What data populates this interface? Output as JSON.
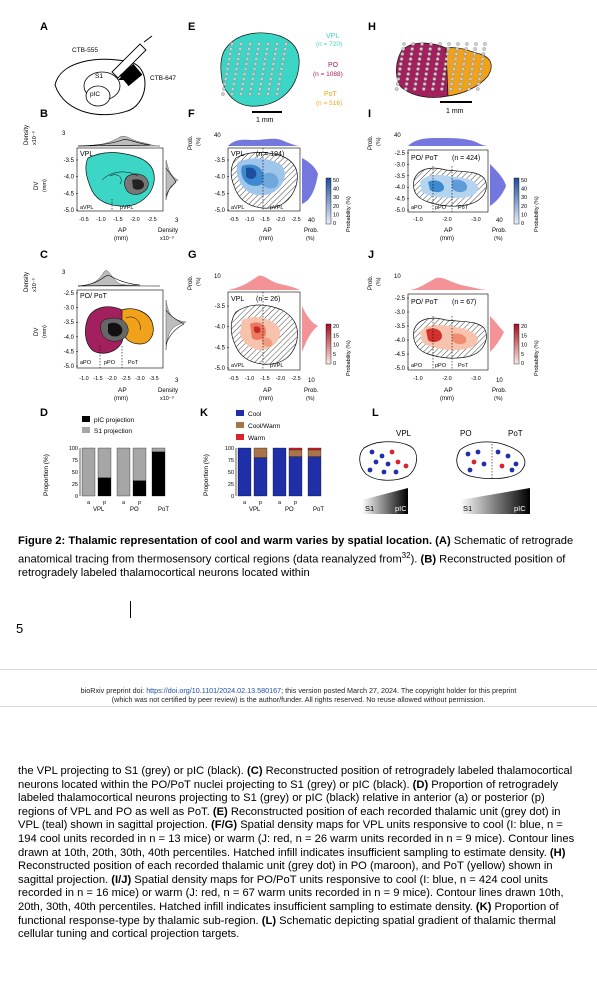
{
  "figure": {
    "panels": {
      "A": {
        "letter": "A",
        "labels": {
          "tracer1": "CTB-555",
          "tracer2": "CTB-647",
          "s1": "S1",
          "pic": "pIC"
        }
      },
      "B": {
        "letter": "B",
        "region": "VPL",
        "density_label": "Density",
        "density_unit": "x10⁻³",
        "dv_label": "DV",
        "dv_unit": "(mm)",
        "y_ticks": [
          "-3.5",
          "-4.0",
          "-4.5",
          "-5.0"
        ],
        "x_ticks": [
          "-0.5",
          "-1.0",
          "-1.5",
          "-2.0",
          "-2.5"
        ],
        "x_label": "AP",
        "x_unit": "(mm)",
        "sub_labels": [
          "aVPL",
          "pVPL"
        ],
        "top_tick": "3",
        "right_tick": "3",
        "right_label": "Density",
        "right_unit": "x10⁻³"
      },
      "C": {
        "letter": "C",
        "region": "PO/ PoT",
        "density_label": "Density",
        "density_unit": "x10⁻³",
        "dv_label": "DV",
        "dv_unit": "(mm)",
        "y_ticks": [
          "-2.5",
          "-3.0",
          "-3.5",
          "-4.0",
          "-4.5",
          "-5.0"
        ],
        "x_ticks": [
          "-1.0",
          "-1.5",
          "-2.0",
          "-2.5",
          "-3.0",
          "-3.5"
        ],
        "x_label": "AP",
        "x_unit": "(mm)",
        "sub_labels": [
          "aPO",
          "pPO",
          "PoT"
        ],
        "top_tick": "3",
        "right_tick": "3",
        "right_label": "Density",
        "right_unit": "x10⁻³"
      },
      "D": {
        "letter": "D",
        "legend": [
          "pIC projection",
          "S1 projection"
        ],
        "y_label": "Proportion (%)",
        "y_ticks": [
          "100",
          "75",
          "50",
          "25",
          "0"
        ],
        "groups": [
          "VPL",
          "PO",
          "PoT"
        ],
        "sub": [
          "a",
          "p",
          "a",
          "p"
        ]
      },
      "E": {
        "letter": "E",
        "legend": [
          {
            "name": "VPL",
            "n": "(n = 720)",
            "color": "#3cd6c6"
          },
          {
            "name": "PO",
            "n": "(n = 1088)",
            "color": "#a3205f"
          },
          {
            "name": "PoT",
            "n": "(n = 516)",
            "color": "#f0a31a"
          }
        ],
        "scale": "1 mm"
      },
      "F": {
        "letter": "F",
        "region": "VPL",
        "n": "(n = 194)",
        "prob_label": "Prob.",
        "prob_unit": "(%)",
        "top_tick": "40",
        "y_ticks": [
          "-3.5",
          "-4.0",
          "-4.5",
          "-5.0"
        ],
        "x_ticks": [
          "-0.5",
          "-1.0",
          "-1.5",
          "-2.0",
          "-2.5"
        ],
        "x_label": "AP",
        "x_unit": "(mm)",
        "sub_labels": [
          "aVPL",
          "pVPL"
        ],
        "cbar_ticks": [
          "50",
          "40",
          "30",
          "20",
          "10",
          "0"
        ],
        "cbar_label": "Probability (%)",
        "right_tick": "40"
      },
      "G": {
        "letter": "G",
        "region": "VPL",
        "n": "(n = 26)",
        "prob_label": "Prob.",
        "prob_unit": "(%)",
        "top_tick": "10",
        "y_ticks": [
          "-3.5",
          "-4.0",
          "-4.5",
          "-5.0"
        ],
        "x_ticks": [
          "-0.5",
          "-1.0",
          "-1.5",
          "-2.0",
          "-2.5"
        ],
        "x_label": "AP",
        "x_unit": "(mm)",
        "sub_labels": [
          "aVPL",
          "pVPL"
        ],
        "cbar_ticks": [
          "20",
          "15",
          "10",
          "5",
          "0"
        ],
        "cbar_label": "Probability (%)",
        "right_tick": "10"
      },
      "H": {
        "letter": "H",
        "scale": "1 mm"
      },
      "I": {
        "letter": "I",
        "region": "PO/ PoT",
        "n": "(n = 424)",
        "prob_label": "Prob.",
        "prob_unit": "(%)",
        "top_tick": "40",
        "y_ticks": [
          "-2.5",
          "-3.0",
          "-3.5",
          "-4.0",
          "-4.5",
          "-5.0"
        ],
        "x_ticks": [
          "-1.0",
          "-2.0",
          "-3.0"
        ],
        "x_label": "AP",
        "x_unit": "(mm)",
        "sub_labels": [
          "aPO",
          "pPO",
          "PoT"
        ],
        "cbar_ticks": [
          "50",
          "40",
          "30",
          "20",
          "10",
          "0"
        ],
        "cbar_label": "Probability (%)",
        "right_tick": "40"
      },
      "J": {
        "letter": "J",
        "region": "PO/ PoT",
        "n": "(n = 67)",
        "prob_label": "Prob.",
        "prob_unit": "(%)",
        "top_tick": "10",
        "y_ticks": [
          "-2.5",
          "-3.0",
          "-3.5",
          "-4.0",
          "-4.5",
          "-5.0"
        ],
        "x_ticks": [
          "-1.0",
          "-2.0",
          "-3.0"
        ],
        "x_label": "AP",
        "x_unit": "(mm)",
        "sub_labels": [
          "aPO",
          "pPO",
          "PoT"
        ],
        "cbar_ticks": [
          "20",
          "15",
          "10",
          "5",
          "0"
        ],
        "cbar_label": "Probability (%)",
        "right_tick": "10"
      },
      "K": {
        "letter": "K",
        "legend": [
          "Cool",
          "Cool/Warm",
          "Warm"
        ],
        "y_label": "Proportion (%)",
        "y_ticks": [
          "100",
          "75",
          "50",
          "25",
          "0"
        ],
        "groups": [
          "VPL",
          "PO",
          "PoT"
        ],
        "sub": [
          "a",
          "p",
          "a",
          "p"
        ]
      },
      "L": {
        "letter": "L",
        "labels": [
          "VPL",
          "PO",
          "PoT"
        ],
        "gradient": [
          "S1",
          "pIC",
          "S1",
          "pIC"
        ]
      }
    },
    "colors": {
      "vpl": "#3cd6c6",
      "po": "#a3205f",
      "pot": "#f0a31a",
      "cool": "#1f2fa8",
      "coolwarm": "#a8744a",
      "warm": "#d9232e",
      "s1": "#a6a6a6",
      "pic": "#000000"
    }
  },
  "chart_data": [
    {
      "type": "bar",
      "title": "D",
      "ylabel": "Proportion (%)",
      "ylim": [
        0,
        100
      ],
      "categories": [
        "a VPL",
        "p VPL",
        "a PO",
        "p PO",
        "PoT"
      ],
      "series": [
        {
          "name": "pIC projection",
          "values": [
            0,
            38,
            0,
            32,
            92
          ]
        },
        {
          "name": "S1 projection",
          "values": [
            100,
            62,
            100,
            68,
            8
          ]
        }
      ]
    },
    {
      "type": "bar",
      "title": "K",
      "ylabel": "Proportion (%)",
      "ylim": [
        0,
        100
      ],
      "categories": [
        "a VPL",
        "p VPL",
        "a PO",
        "p PO",
        "PoT"
      ],
      "series": [
        {
          "name": "Cool",
          "values": [
            100,
            80,
            100,
            82,
            82
          ]
        },
        {
          "name": "Cool/Warm",
          "values": [
            0,
            20,
            0,
            14,
            14
          ]
        },
        {
          "name": "Warm",
          "values": [
            0,
            0,
            0,
            4,
            4
          ]
        }
      ]
    }
  ],
  "caption_top": {
    "title": "Figure 2: Thalamic representation of cool and warm varies by spatial location.",
    "part_a_label": "(A)",
    "part_a": "Schematic of retrograde anatomical tracing from thermosensory cortical regions (data reanalyzed from",
    "ref": "32",
    "part_a_end": ").",
    "part_b_label": "(B)",
    "part_b": "Reconstructed position of retrogradely labeled thalamocortical neurons located within"
  },
  "page_number": "5",
  "preprint_line1_pre": "bioRxiv preprint doi: ",
  "preprint_link": "https://doi.org/10.1101/2024.02.13.580167",
  "preprint_line1_post": "; this version posted March 27, 2024. The copyright holder for this preprint",
  "preprint_line2": "(which was not certified by peer review) is the author/funder. All rights reserved. No reuse allowed without permission.",
  "caption_cont": [
    {
      "t": "the VPL projecting to S1 (grey) or pIC (black). "
    },
    {
      "b": "(C)"
    },
    {
      "t": " Reconstructed position of retrogradely labeled thalamocortical neurons located within the PO/PoT nuclei projecting to S1 (grey) or pIC (black). "
    },
    {
      "b": "(D)"
    },
    {
      "t": " Proportion of retrogradely labeled thalamocortical neurons projecting to S1 (grey) or pIC (black) relative in anterior (a) or posterior (p) regions of VPL and PO as well as PoT. "
    },
    {
      "b": "(E)"
    },
    {
      "t": " Reconstructed position of each recorded thalamic unit (grey dot) in VPL (teal) shown in sagittal projection. "
    },
    {
      "b": "(F/G)"
    },
    {
      "t": " Spatial density maps for VPL units responsive to cool (I: blue, n = 194 cool units recorded in n = 13 mice) or warm (J: red, n = 26 warm units recorded in n = 9 mice). Contour lines drawn at 10th, 20th, 30th, 40th percentiles. Hatched infill indicates insufficient sampling to estimate density. "
    },
    {
      "b": "(H)"
    },
    {
      "t": " Reconstructed position of each recorded thalamic unit (grey dot) in PO (maroon), and PoT (yellow) shown in sagittal projection. "
    },
    {
      "b": "(I/J)"
    },
    {
      "t": " Spatial density maps for PO/PoT units responsive to cool (I: blue, n = 424 cool units recorded in n = 16 mice) or warm (J: red, n = 67 warm units recorded in n = 9 mice). Contour lines drawn 10th, 20th, 30th, 40th percentiles. Hatched infill indicates insufficient sampling to estimate density. "
    },
    {
      "b": "(K)"
    },
    {
      "t": " Proportion of functional response-type by thalamic sub-region. "
    },
    {
      "b": "(L)"
    },
    {
      "t": " Schematic depicting spatial gradient of thalamic thermal cellular tuning and cortical projection targets."
    }
  ]
}
